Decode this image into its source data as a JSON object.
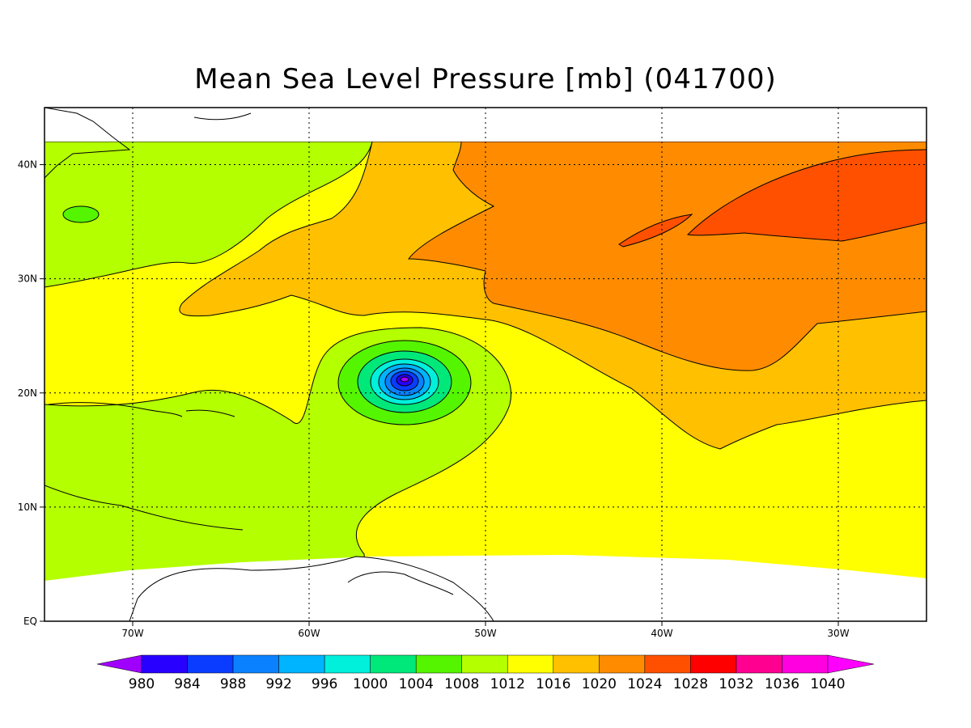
{
  "title": "Mean Sea Level Pressure [mb] (041700)",
  "map": {
    "lon_range": [
      -75,
      -25
    ],
    "lat_range": [
      0,
      45
    ],
    "data_lat_top": 42,
    "lon_ticks": [
      {
        "value": -70,
        "label": "70W"
      },
      {
        "value": -60,
        "label": "60W"
      },
      {
        "value": -50,
        "label": "50W"
      },
      {
        "value": -40,
        "label": "40W"
      },
      {
        "value": -30,
        "label": "30W"
      }
    ],
    "lat_ticks": [
      {
        "value": 0,
        "label": "EQ"
      },
      {
        "value": 10,
        "label": "10N"
      },
      {
        "value": 20,
        "label": "20N"
      },
      {
        "value": 30,
        "label": "30N"
      },
      {
        "value": 40,
        "label": "40N"
      }
    ],
    "grid": "dotted",
    "storm_center": {
      "lon": -54.5,
      "lat": 21
    }
  },
  "colorbar": {
    "levels": [
      980,
      984,
      988,
      992,
      996,
      1000,
      1004,
      1008,
      1012,
      1016,
      1020,
      1024,
      1028,
      1032,
      1036,
      1040
    ],
    "colors": [
      "#a000ff",
      "#2800ff",
      "#0a3cff",
      "#0a82ff",
      "#00b4ff",
      "#00f0dc",
      "#00e87a",
      "#55f500",
      "#b4ff00",
      "#ffff00",
      "#ffc000",
      "#ff8c00",
      "#ff5000",
      "#ff0000",
      "#ff0090",
      "#ff00e0",
      "#ff00ff"
    ]
  }
}
